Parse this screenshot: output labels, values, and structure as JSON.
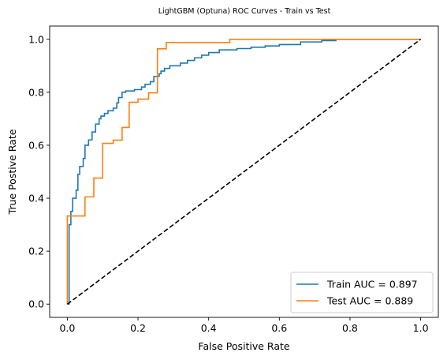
{
  "chart_data": {
    "type": "line",
    "title": "LightGBM (Optuna) ROC Curves - Train vs Test",
    "xlabel": "False Positive Rate",
    "ylabel": "True Postive Rate",
    "xlim": [
      -0.05,
      1.05
    ],
    "ylim": [
      -0.05,
      1.05
    ],
    "xticks": [
      0.0,
      0.2,
      0.4,
      0.6,
      0.8,
      1.0
    ],
    "yticks": [
      0.0,
      0.2,
      0.4,
      0.6,
      0.8,
      1.0
    ],
    "xtick_labels": [
      "0.0",
      "0.2",
      "0.4",
      "0.6",
      "0.8",
      "1.0"
    ],
    "ytick_labels": [
      "0.0",
      "0.2",
      "0.4",
      "0.6",
      "0.8",
      "1.0"
    ],
    "grid": false,
    "legend_position": "lower-right",
    "series": [
      {
        "name": "Train AUC = 0.897",
        "color": "#1f77b4",
        "x": [
          0.0,
          0.005,
          0.005,
          0.01,
          0.01,
          0.015,
          0.015,
          0.025,
          0.025,
          0.03,
          0.03,
          0.035,
          0.035,
          0.045,
          0.045,
          0.05,
          0.05,
          0.06,
          0.06,
          0.07,
          0.07,
          0.08,
          0.08,
          0.09,
          0.09,
          0.095,
          0.095,
          0.105,
          0.105,
          0.115,
          0.115,
          0.13,
          0.13,
          0.14,
          0.14,
          0.145,
          0.145,
          0.155,
          0.155,
          0.165,
          0.165,
          0.19,
          0.19,
          0.21,
          0.21,
          0.22,
          0.22,
          0.235,
          0.235,
          0.245,
          0.245,
          0.26,
          0.26,
          0.265,
          0.265,
          0.275,
          0.275,
          0.29,
          0.29,
          0.32,
          0.32,
          0.34,
          0.34,
          0.36,
          0.36,
          0.38,
          0.38,
          0.4,
          0.4,
          0.43,
          0.43,
          0.48,
          0.48,
          0.52,
          0.52,
          0.56,
          0.56,
          0.6,
          0.6,
          0.66,
          0.66,
          0.72,
          0.72,
          0.76,
          0.76,
          1.0
        ],
        "y": [
          0.0,
          0.0,
          0.3,
          0.3,
          0.35,
          0.35,
          0.4,
          0.4,
          0.43,
          0.43,
          0.49,
          0.49,
          0.52,
          0.52,
          0.55,
          0.55,
          0.6,
          0.6,
          0.62,
          0.62,
          0.65,
          0.65,
          0.68,
          0.68,
          0.7,
          0.7,
          0.71,
          0.71,
          0.72,
          0.72,
          0.73,
          0.73,
          0.74,
          0.74,
          0.76,
          0.76,
          0.78,
          0.78,
          0.8,
          0.8,
          0.805,
          0.805,
          0.81,
          0.81,
          0.82,
          0.82,
          0.83,
          0.83,
          0.84,
          0.84,
          0.86,
          0.86,
          0.87,
          0.87,
          0.88,
          0.88,
          0.89,
          0.89,
          0.9,
          0.9,
          0.91,
          0.91,
          0.92,
          0.92,
          0.93,
          0.93,
          0.94,
          0.94,
          0.95,
          0.95,
          0.96,
          0.96,
          0.965,
          0.965,
          0.97,
          0.97,
          0.975,
          0.975,
          0.98,
          0.98,
          0.99,
          0.99,
          0.995,
          0.995,
          1.0,
          1.0
        ]
      },
      {
        "name": "Test AUC = 0.889",
        "color": "#ff7f0e",
        "x": [
          0.0,
          0.0,
          0.05,
          0.05,
          0.075,
          0.075,
          0.1,
          0.1,
          0.13,
          0.13,
          0.155,
          0.155,
          0.175,
          0.175,
          0.2,
          0.2,
          0.23,
          0.23,
          0.255,
          0.255,
          0.28,
          0.28,
          0.46,
          0.46,
          1.0
        ],
        "y": [
          0.0,
          0.333,
          0.333,
          0.405,
          0.405,
          0.476,
          0.476,
          0.607,
          0.607,
          0.619,
          0.619,
          0.667,
          0.667,
          0.762,
          0.762,
          0.774,
          0.774,
          0.798,
          0.798,
          0.964,
          0.964,
          0.988,
          0.988,
          1.0,
          1.0
        ]
      },
      {
        "name": "",
        "color": "#000000",
        "dashed": true,
        "x": [
          0.0,
          1.0
        ],
        "y": [
          0.0,
          1.0
        ]
      }
    ]
  }
}
